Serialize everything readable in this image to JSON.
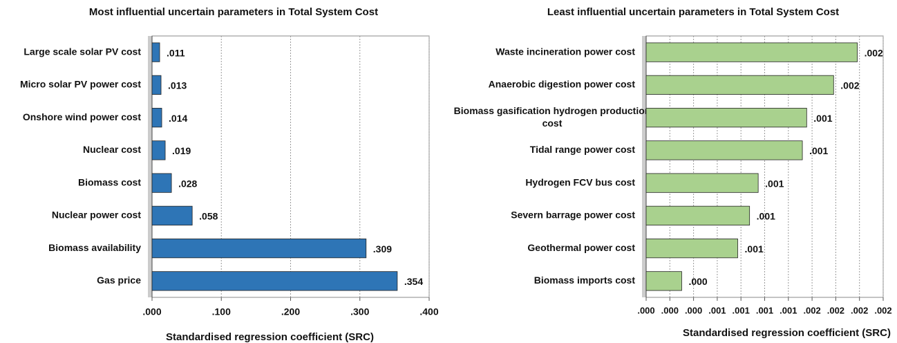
{
  "chart_data": [
    {
      "type": "barh",
      "title": "Most influential uncertain parameters in Total System Cost",
      "xlabel": "Standardised regression coefficient (SRC)",
      "categories": [
        "Large scale solar PV cost",
        "Micro solar PV power cost",
        "Onshore wind power cost",
        "Nuclear cost",
        "Biomass cost",
        "Nuclear power cost",
        "Biomass availability",
        "Gas price"
      ],
      "values": [
        0.011,
        0.013,
        0.014,
        0.019,
        0.028,
        0.058,
        0.309,
        0.354
      ],
      "value_labels": [
        ".011",
        ".013",
        ".014",
        ".019",
        ".028",
        ".058",
        ".309",
        ".354"
      ],
      "color": "#2e75b6",
      "xlim": [
        0,
        0.4
      ],
      "xticks": [
        {
          "value": 0,
          "label": ".000"
        },
        {
          "value": 0.1,
          "label": ".100"
        },
        {
          "value": 0.2,
          "label": ".200"
        },
        {
          "value": 0.3,
          "label": ".300"
        },
        {
          "value": 0.4,
          "label": ".400"
        }
      ],
      "grid": true
    },
    {
      "type": "barh",
      "title": "Least influential uncertain parameters in Total System Cost",
      "xlabel": "Standardised regression coefficient (SRC)",
      "categories": [
        "Waste incineration power cost",
        "Anaerobic digestion power cost",
        "Biomass gasification hydrogen production cost",
        "Tidal range power cost",
        "Hydrogen FCV bus cost",
        "Severn barrage power cost",
        "Geothermal power cost",
        "Biomass imports cost"
      ],
      "values": [
        0.00196,
        0.00174,
        0.00149,
        0.00145,
        0.00104,
        0.00096,
        0.00085,
        0.00033
      ],
      "value_labels": [
        ".002",
        ".002",
        ".001",
        ".001",
        ".001",
        ".001",
        ".001",
        ".000"
      ],
      "color": "#a9d18e",
      "xlim": [
        0,
        0.0022
      ],
      "xticks": [
        {
          "value": 0,
          "label": ".000"
        },
        {
          "value": 0.00022,
          "label": ".000"
        },
        {
          "value": 0.00044,
          "label": ".000"
        },
        {
          "value": 0.00066,
          "label": ".001"
        },
        {
          "value": 0.00088,
          "label": ".001"
        },
        {
          "value": 0.0011,
          "label": ".001"
        },
        {
          "value": 0.00132,
          "label": ".001"
        },
        {
          "value": 0.00154,
          "label": ".002"
        },
        {
          "value": 0.00176,
          "label": ".002"
        },
        {
          "value": 0.00198,
          "label": ".002"
        },
        {
          "value": 0.0022,
          "label": ".002"
        }
      ],
      "grid": true
    }
  ]
}
